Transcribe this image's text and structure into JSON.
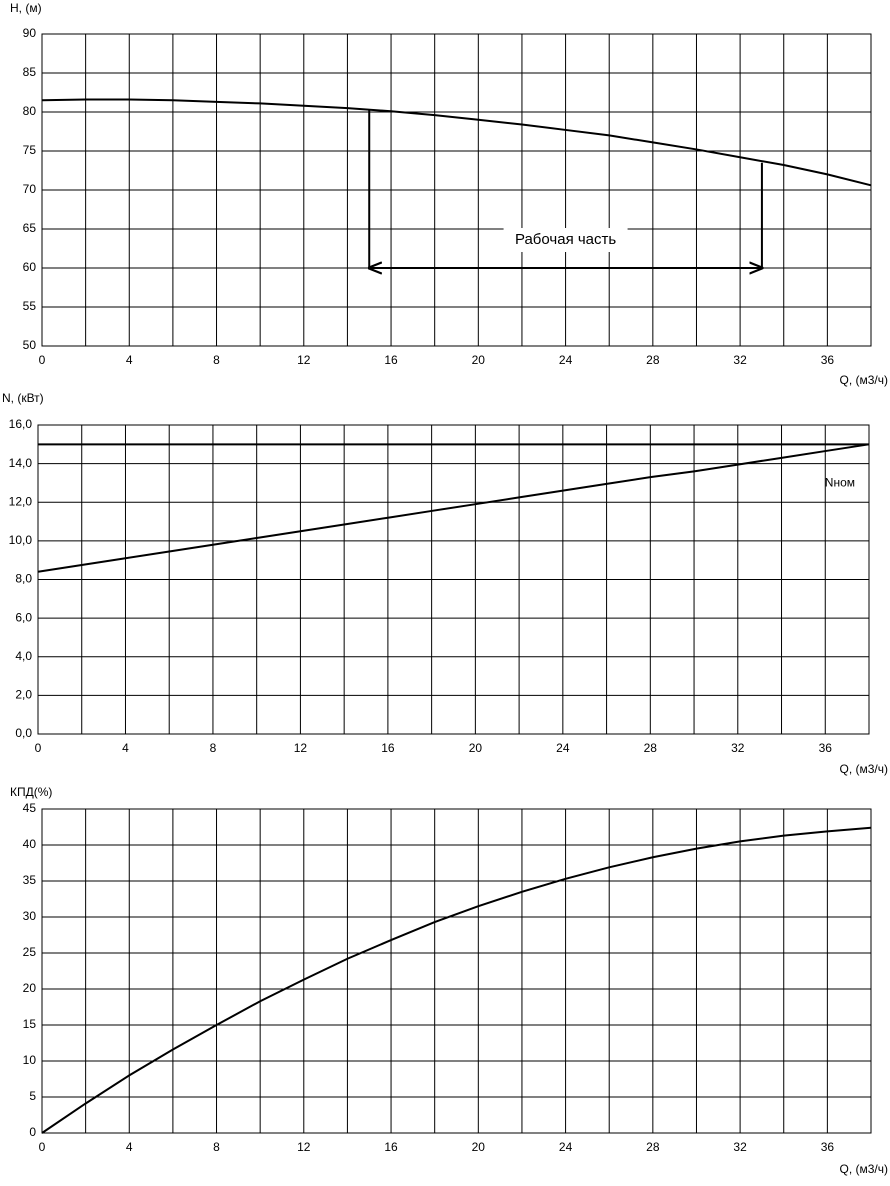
{
  "chart_data": [
    {
      "type": "line",
      "y_label": "H, (м)",
      "x_label": "Q, (м3/ч)",
      "x": [
        0,
        2,
        4,
        6,
        8,
        10,
        12,
        14,
        16,
        18,
        20,
        22,
        24,
        26,
        28,
        30,
        32,
        34,
        36,
        38
      ],
      "series": [
        {
          "color": "#000000",
          "values": [
            81.5,
            81.6,
            81.6,
            81.5,
            81.3,
            81.1,
            80.8,
            80.5,
            80.1,
            79.6,
            79.0,
            78.4,
            77.7,
            77.0,
            76.1,
            75.2,
            74.2,
            73.2,
            72.0,
            70.6
          ]
        }
      ],
      "xlim": [
        0,
        38
      ],
      "xticks": [
        0,
        4,
        8,
        12,
        16,
        20,
        24,
        28,
        32,
        36
      ],
      "xminorticks": [
        2,
        6,
        10,
        14,
        18,
        22,
        26,
        30,
        34
      ],
      "ylim": [
        50,
        90
      ],
      "yticks": [
        50,
        55,
        60,
        65,
        70,
        75,
        80,
        85,
        90
      ],
      "grid": true,
      "work_range": {
        "text": "Рабочая часть",
        "q": [
          15,
          33
        ],
        "h_top": [
          80.2,
          73.5
        ],
        "h_base": 60
      }
    },
    {
      "type": "line",
      "y_label": "N, (кВт)",
      "x_label": "Q, (м3/ч)",
      "x": [
        0,
        2,
        4,
        6,
        8,
        10,
        12,
        14,
        16,
        18,
        20,
        22,
        24,
        26,
        28,
        30,
        32,
        34,
        36,
        38
      ],
      "series": [
        {
          "color": "#000000",
          "values": [
            8.4,
            8.75,
            9.1,
            9.45,
            9.8,
            10.15,
            10.5,
            10.85,
            11.2,
            11.55,
            11.9,
            12.25,
            12.6,
            12.95,
            13.3,
            13.6,
            13.95,
            14.3,
            14.65,
            15.0
          ]
        },
        {
          "name": "Nном",
          "color": "#000000",
          "values": [
            15,
            15,
            15,
            15,
            15,
            15,
            15,
            15,
            15,
            15,
            15,
            15,
            15,
            15,
            15,
            15,
            15,
            15,
            15,
            15
          ]
        }
      ],
      "xlim": [
        0,
        38
      ],
      "xticks": [
        0,
        4,
        8,
        12,
        16,
        20,
        24,
        28,
        32,
        36
      ],
      "xminorticks": [
        2,
        6,
        10,
        14,
        18,
        22,
        26,
        30,
        34
      ],
      "ylim": [
        0,
        16
      ],
      "yticks": [
        {
          "value": 0,
          "label": "0,0"
        },
        {
          "value": 2,
          "label": "2,0"
        },
        {
          "value": 4,
          "label": "4,0"
        },
        {
          "value": 6,
          "label": "6,0"
        },
        {
          "value": 8,
          "label": "8,0"
        },
        {
          "value": 10,
          "label": "10,0"
        },
        {
          "value": 12,
          "label": "12,0"
        },
        {
          "value": 14,
          "label": "14,0"
        },
        {
          "value": 16,
          "label": "16,0"
        }
      ],
      "grid": true
    },
    {
      "type": "line",
      "y_label": "КПД(%)",
      "x_label": "Q, (м3/ч)",
      "x": [
        0,
        2,
        4,
        6,
        8,
        10,
        12,
        14,
        16,
        18,
        20,
        22,
        24,
        26,
        28,
        30,
        32,
        34,
        36,
        38
      ],
      "series": [
        {
          "color": "#000000",
          "values": [
            0,
            4.1,
            8.0,
            11.6,
            15.0,
            18.3,
            21.3,
            24.2,
            26.8,
            29.3,
            31.5,
            33.5,
            35.3,
            36.9,
            38.3,
            39.5,
            40.5,
            41.3,
            41.9,
            42.4
          ]
        }
      ],
      "xlim": [
        0,
        38
      ],
      "xticks": [
        0,
        4,
        8,
        12,
        16,
        20,
        24,
        28,
        32,
        36
      ],
      "xminorticks": [
        2,
        6,
        10,
        14,
        18,
        22,
        26,
        30,
        34
      ],
      "ylim": [
        0,
        45
      ],
      "yticks": [
        0,
        5,
        10,
        15,
        20,
        25,
        30,
        35,
        40,
        45
      ],
      "grid": true
    }
  ]
}
